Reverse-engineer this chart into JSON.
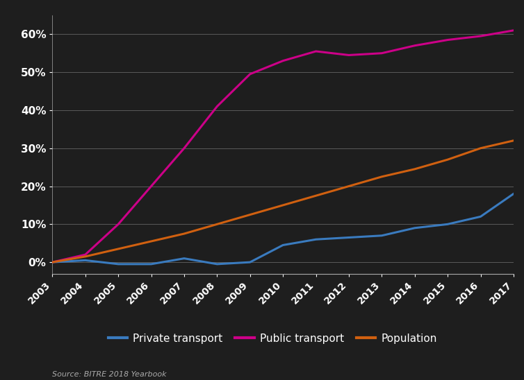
{
  "years": [
    2003,
    2004,
    2005,
    2006,
    2007,
    2008,
    2009,
    2010,
    2011,
    2012,
    2013,
    2014,
    2015,
    2016,
    2017
  ],
  "private_transport": [
    0.0,
    0.5,
    -0.5,
    -0.5,
    1.0,
    -0.5,
    0.0,
    4.5,
    6.0,
    6.5,
    7.0,
    9.0,
    10.0,
    12.0,
    18.0
  ],
  "public_transport": [
    0.0,
    2.0,
    10.0,
    20.0,
    30.0,
    41.0,
    49.5,
    53.0,
    55.5,
    54.5,
    55.0,
    57.0,
    58.5,
    59.5,
    61.0
  ],
  "population": [
    0.0,
    1.5,
    3.5,
    5.5,
    7.5,
    10.0,
    12.5,
    15.0,
    17.5,
    20.0,
    22.5,
    24.5,
    27.0,
    30.0,
    32.0
  ],
  "private_color": "#3a7bbf",
  "public_color": "#cc0088",
  "population_color": "#d06010",
  "background_color": "#1e1e1e",
  "grid_color": "#aaaaaa",
  "text_color": "#ffffff",
  "legend_labels": [
    "Private transport",
    "Public transport",
    "Population"
  ],
  "source_text": "Source: BITRE 2018 Yearbook",
  "ylim": [
    -3,
    65
  ],
  "yticks": [
    0,
    10,
    20,
    30,
    40,
    50,
    60
  ],
  "ytick_labels": [
    "0%",
    "10%",
    "20%",
    "30%",
    "40%",
    "50%",
    "60%"
  ],
  "line_width": 2.2
}
